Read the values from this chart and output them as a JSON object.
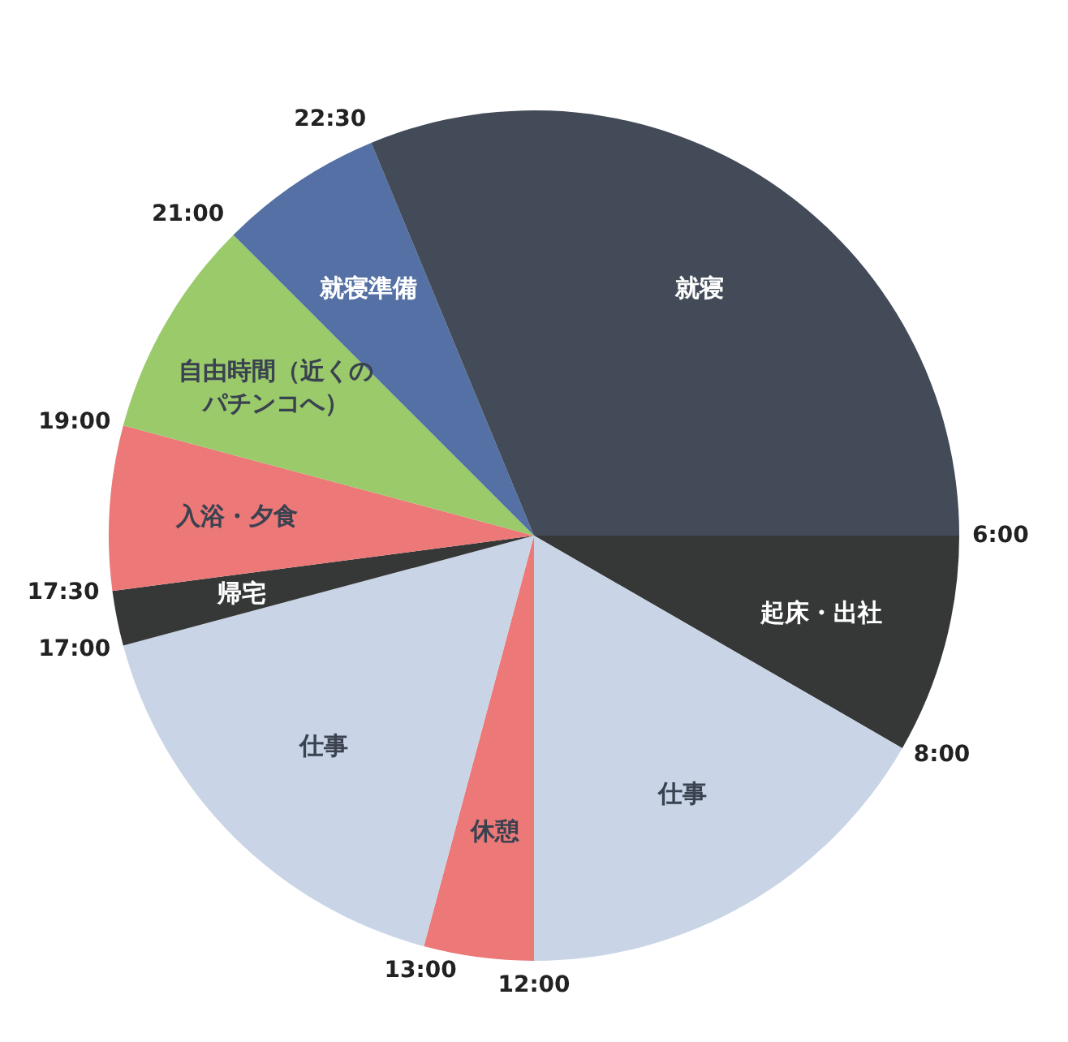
{
  "chart_data": {
    "type": "pie",
    "categories": [
      "起床・出社",
      "仕事",
      "休憩",
      "仕事",
      "帰宅",
      "入浴・夕食",
      "自由時間（近くのパチンコへ）",
      "就寝準備",
      "就寝"
    ],
    "values": [
      8.33,
      16.67,
      4.17,
      16.67,
      2.08,
      6.25,
      8.33,
      6.25,
      31.25
    ],
    "colors": [
      "#363838",
      "#c9d5e6",
      "#ec7878",
      "#c9d5e6",
      "#363838",
      "#ec7878",
      "#9aca6a",
      "#5470a4",
      "#424b57"
    ],
    "annotations": [
      "6:00",
      "8:00",
      "12:00",
      "13:00",
      "17:00",
      "17:30",
      "19:00",
      "21:00",
      "22:30"
    ],
    "legend": false
  }
}
